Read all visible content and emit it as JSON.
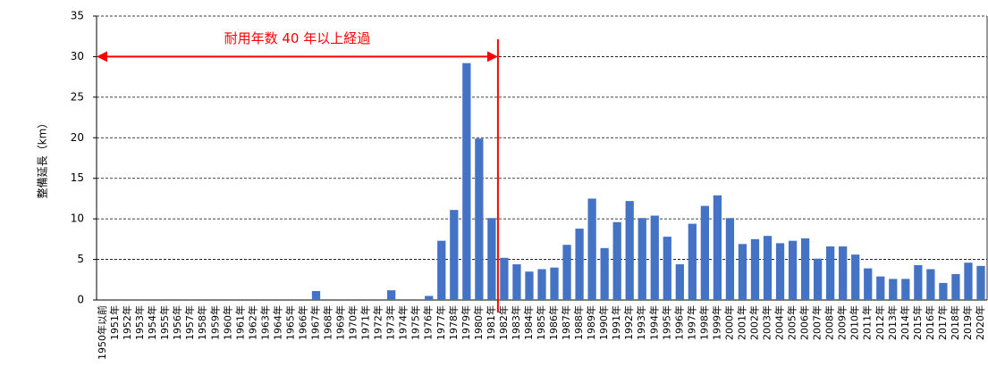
{
  "chart_data": {
    "type": "bar",
    "ylabel": "整備延長（km）",
    "categories": [
      "1950年以前",
      "1951年",
      "1952年",
      "1953年",
      "1954年",
      "1955年",
      "1956年",
      "1957年",
      "1958年",
      "1959年",
      "1960年",
      "1961年",
      "1962年",
      "1963年",
      "1964年",
      "1965年",
      "1966年",
      "1967年",
      "1968年",
      "1969年",
      "1970年",
      "1971年",
      "1972年",
      "1973年",
      "1974年",
      "1975年",
      "1976年",
      "1977年",
      "1978年",
      "1979年",
      "1980年",
      "1981年",
      "1982年",
      "1983年",
      "1984年",
      "1985年",
      "1986年",
      "1987年",
      "1988年",
      "1989年",
      "1990年",
      "1991年",
      "1992年",
      "1993年",
      "1994年",
      "1995年",
      "1996年",
      "1997年",
      "1998年",
      "1999年",
      "2000年",
      "2001年",
      "2002年",
      "2003年",
      "2004年",
      "2005年",
      "2006年",
      "2007年",
      "2008年",
      "2009年",
      "2010年",
      "2011年",
      "2012年",
      "2013年",
      "2014年",
      "2015年",
      "2016年",
      "2017年",
      "2018年",
      "2019年",
      "2020年"
    ],
    "values": [
      0,
      0,
      0,
      0,
      0,
      0,
      0,
      0,
      0,
      0,
      0,
      0,
      0,
      0,
      0,
      0,
      0,
      1.1,
      0,
      0,
      0,
      0,
      0,
      1.2,
      0,
      0,
      0.5,
      7.3,
      11.1,
      29.2,
      19.9,
      10.1,
      5.2,
      4.4,
      3.5,
      3.8,
      4.0,
      6.8,
      8.8,
      12.5,
      6.4,
      9.6,
      12.2,
      10.1,
      10.4,
      7.8,
      4.4,
      9.4,
      11.6,
      12.9,
      10.1,
      6.9,
      7.5,
      7.9,
      7.0,
      7.3,
      7.6,
      5.1,
      6.6,
      6.6,
      5.6,
      3.9,
      2.9,
      2.6,
      2.6,
      4.3,
      3.8,
      2.1,
      3.2,
      4.6,
      4.2
    ],
    "color": "#4472c4",
    "ylim": [
      0,
      35
    ],
    "yticks": [
      0,
      5,
      10,
      15,
      20,
      25,
      30,
      35
    ],
    "grid": true,
    "annotation": {
      "text": "耐用年数 40 年以上経過",
      "x_from": "1950年以前",
      "x_to": "1981年",
      "y": 30,
      "color": "#ff0000"
    }
  }
}
